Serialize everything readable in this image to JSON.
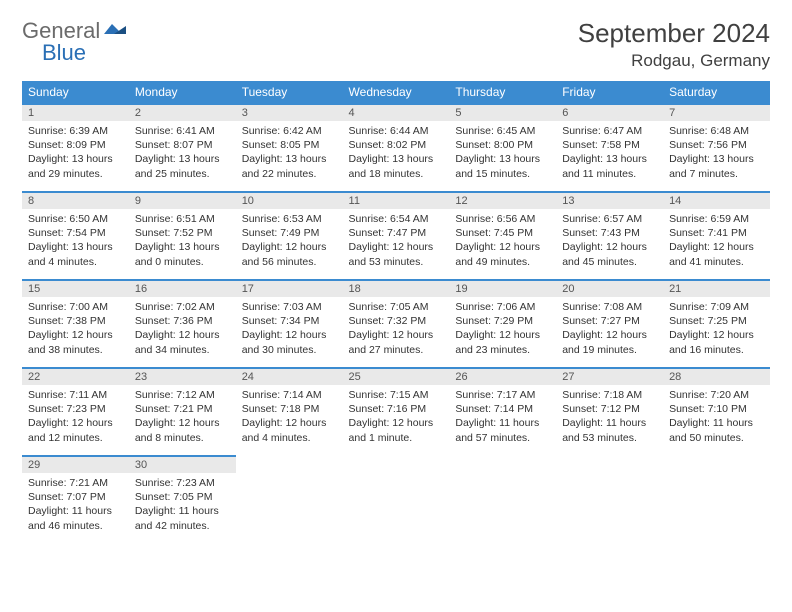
{
  "logo": {
    "general": "General",
    "blue": "Blue"
  },
  "header": {
    "month_title": "September 2024",
    "location": "Rodgau, Germany"
  },
  "colors": {
    "header_blue": "#3b8bd0",
    "daynum_bg": "#e9e9e9",
    "text": "#333333",
    "title_text": "#404040",
    "logo_gray": "#6b6b6b",
    "logo_blue": "#2a6fb5"
  },
  "day_names": [
    "Sunday",
    "Monday",
    "Tuesday",
    "Wednesday",
    "Thursday",
    "Friday",
    "Saturday"
  ],
  "weeks": [
    [
      {
        "num": "1",
        "sunrise": "Sunrise: 6:39 AM",
        "sunset": "Sunset: 8:09 PM",
        "daylight": "Daylight: 13 hours and 29 minutes."
      },
      {
        "num": "2",
        "sunrise": "Sunrise: 6:41 AM",
        "sunset": "Sunset: 8:07 PM",
        "daylight": "Daylight: 13 hours and 25 minutes."
      },
      {
        "num": "3",
        "sunrise": "Sunrise: 6:42 AM",
        "sunset": "Sunset: 8:05 PM",
        "daylight": "Daylight: 13 hours and 22 minutes."
      },
      {
        "num": "4",
        "sunrise": "Sunrise: 6:44 AM",
        "sunset": "Sunset: 8:02 PM",
        "daylight": "Daylight: 13 hours and 18 minutes."
      },
      {
        "num": "5",
        "sunrise": "Sunrise: 6:45 AM",
        "sunset": "Sunset: 8:00 PM",
        "daylight": "Daylight: 13 hours and 15 minutes."
      },
      {
        "num": "6",
        "sunrise": "Sunrise: 6:47 AM",
        "sunset": "Sunset: 7:58 PM",
        "daylight": "Daylight: 13 hours and 11 minutes."
      },
      {
        "num": "7",
        "sunrise": "Sunrise: 6:48 AM",
        "sunset": "Sunset: 7:56 PM",
        "daylight": "Daylight: 13 hours and 7 minutes."
      }
    ],
    [
      {
        "num": "8",
        "sunrise": "Sunrise: 6:50 AM",
        "sunset": "Sunset: 7:54 PM",
        "daylight": "Daylight: 13 hours and 4 minutes."
      },
      {
        "num": "9",
        "sunrise": "Sunrise: 6:51 AM",
        "sunset": "Sunset: 7:52 PM",
        "daylight": "Daylight: 13 hours and 0 minutes."
      },
      {
        "num": "10",
        "sunrise": "Sunrise: 6:53 AM",
        "sunset": "Sunset: 7:49 PM",
        "daylight": "Daylight: 12 hours and 56 minutes."
      },
      {
        "num": "11",
        "sunrise": "Sunrise: 6:54 AM",
        "sunset": "Sunset: 7:47 PM",
        "daylight": "Daylight: 12 hours and 53 minutes."
      },
      {
        "num": "12",
        "sunrise": "Sunrise: 6:56 AM",
        "sunset": "Sunset: 7:45 PM",
        "daylight": "Daylight: 12 hours and 49 minutes."
      },
      {
        "num": "13",
        "sunrise": "Sunrise: 6:57 AM",
        "sunset": "Sunset: 7:43 PM",
        "daylight": "Daylight: 12 hours and 45 minutes."
      },
      {
        "num": "14",
        "sunrise": "Sunrise: 6:59 AM",
        "sunset": "Sunset: 7:41 PM",
        "daylight": "Daylight: 12 hours and 41 minutes."
      }
    ],
    [
      {
        "num": "15",
        "sunrise": "Sunrise: 7:00 AM",
        "sunset": "Sunset: 7:38 PM",
        "daylight": "Daylight: 12 hours and 38 minutes."
      },
      {
        "num": "16",
        "sunrise": "Sunrise: 7:02 AM",
        "sunset": "Sunset: 7:36 PM",
        "daylight": "Daylight: 12 hours and 34 minutes."
      },
      {
        "num": "17",
        "sunrise": "Sunrise: 7:03 AM",
        "sunset": "Sunset: 7:34 PM",
        "daylight": "Daylight: 12 hours and 30 minutes."
      },
      {
        "num": "18",
        "sunrise": "Sunrise: 7:05 AM",
        "sunset": "Sunset: 7:32 PM",
        "daylight": "Daylight: 12 hours and 27 minutes."
      },
      {
        "num": "19",
        "sunrise": "Sunrise: 7:06 AM",
        "sunset": "Sunset: 7:29 PM",
        "daylight": "Daylight: 12 hours and 23 minutes."
      },
      {
        "num": "20",
        "sunrise": "Sunrise: 7:08 AM",
        "sunset": "Sunset: 7:27 PM",
        "daylight": "Daylight: 12 hours and 19 minutes."
      },
      {
        "num": "21",
        "sunrise": "Sunrise: 7:09 AM",
        "sunset": "Sunset: 7:25 PM",
        "daylight": "Daylight: 12 hours and 16 minutes."
      }
    ],
    [
      {
        "num": "22",
        "sunrise": "Sunrise: 7:11 AM",
        "sunset": "Sunset: 7:23 PM",
        "daylight": "Daylight: 12 hours and 12 minutes."
      },
      {
        "num": "23",
        "sunrise": "Sunrise: 7:12 AM",
        "sunset": "Sunset: 7:21 PM",
        "daylight": "Daylight: 12 hours and 8 minutes."
      },
      {
        "num": "24",
        "sunrise": "Sunrise: 7:14 AM",
        "sunset": "Sunset: 7:18 PM",
        "daylight": "Daylight: 12 hours and 4 minutes."
      },
      {
        "num": "25",
        "sunrise": "Sunrise: 7:15 AM",
        "sunset": "Sunset: 7:16 PM",
        "daylight": "Daylight: 12 hours and 1 minute."
      },
      {
        "num": "26",
        "sunrise": "Sunrise: 7:17 AM",
        "sunset": "Sunset: 7:14 PM",
        "daylight": "Daylight: 11 hours and 57 minutes."
      },
      {
        "num": "27",
        "sunrise": "Sunrise: 7:18 AM",
        "sunset": "Sunset: 7:12 PM",
        "daylight": "Daylight: 11 hours and 53 minutes."
      },
      {
        "num": "28",
        "sunrise": "Sunrise: 7:20 AM",
        "sunset": "Sunset: 7:10 PM",
        "daylight": "Daylight: 11 hours and 50 minutes."
      }
    ],
    [
      {
        "num": "29",
        "sunrise": "Sunrise: 7:21 AM",
        "sunset": "Sunset: 7:07 PM",
        "daylight": "Daylight: 11 hours and 46 minutes."
      },
      {
        "num": "30",
        "sunrise": "Sunrise: 7:23 AM",
        "sunset": "Sunset: 7:05 PM",
        "daylight": "Daylight: 11 hours and 42 minutes."
      },
      null,
      null,
      null,
      null,
      null
    ]
  ]
}
